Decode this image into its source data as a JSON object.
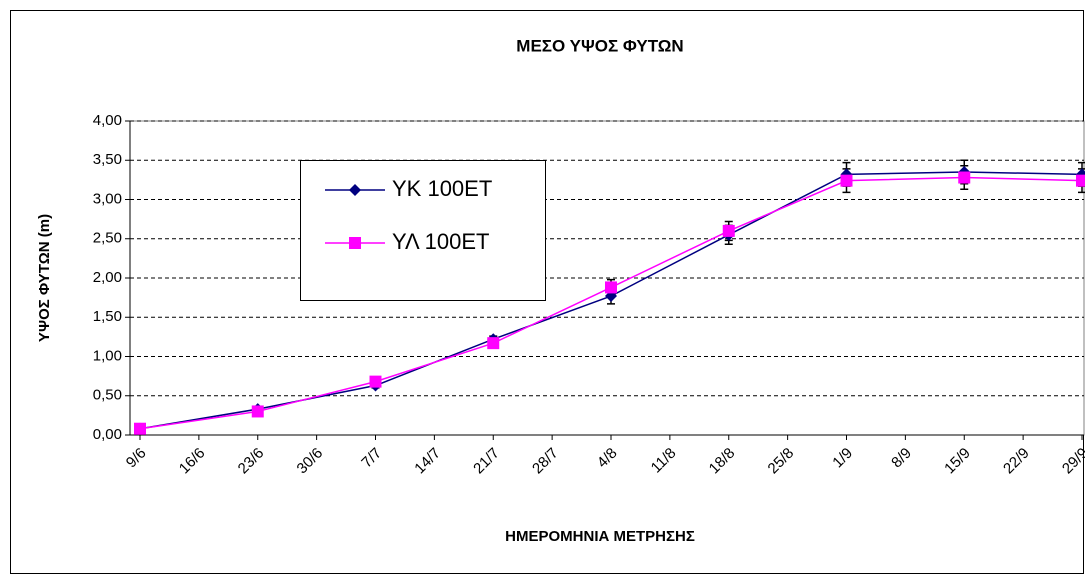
{
  "chart_data": {
    "type": "line",
    "title": "ΜΕΣΟ ΥΨΟΣ ΦΥΤΩΝ",
    "y_label": "ΥΨΟΣ ΦΥΤΩΝ (m)",
    "x_label": "ΗΜΕΡΟΜΗΝΙΑ ΜΕΤΡΗΣΗΣ",
    "categories": [
      "9/6",
      "16/6",
      "23/6",
      "30/6",
      "7/7",
      "14/7",
      "21/7",
      "28/7",
      "4/8",
      "11/8",
      "18/8",
      "25/8",
      "1/9",
      "8/9",
      "15/9",
      "22/9",
      "29/9"
    ],
    "x": [
      "9/6",
      "23/6",
      "7/7",
      "21/7",
      "4/8",
      "18/8",
      "1/9",
      "15/9",
      "29/9"
    ],
    "series": [
      {
        "name": "ΥΚ 100ΕΤ",
        "color": "#000080",
        "marker": "diamond",
        "values": [
          0.08,
          0.33,
          0.63,
          1.22,
          1.77,
          2.55,
          3.32,
          3.35,
          3.32
        ],
        "errors": [
          0.02,
          0.03,
          0.03,
          0.04,
          0.1,
          0.12,
          0.15,
          0.15,
          0.15
        ]
      },
      {
        "name": "ΥΛ 100ΕΤ",
        "color": "#ff00ff",
        "marker": "square",
        "values": [
          0.08,
          0.3,
          0.68,
          1.17,
          1.88,
          2.6,
          3.24,
          3.28,
          3.24
        ],
        "errors": [
          0.02,
          0.03,
          0.03,
          0.04,
          0.1,
          0.12,
          0.15,
          0.15,
          0.15
        ]
      }
    ],
    "ylim": [
      0,
      4
    ],
    "yticks": [
      {
        "value": 0,
        "label": "0,00"
      },
      {
        "value": 0.5,
        "label": "0,50"
      },
      {
        "value": 1,
        "label": "1,00"
      },
      {
        "value": 1.5,
        "label": "1,50"
      },
      {
        "value": 2,
        "label": "2,00"
      },
      {
        "value": 2.5,
        "label": "2,50"
      },
      {
        "value": 3,
        "label": "3,00"
      },
      {
        "value": 3.5,
        "label": "3,50"
      },
      {
        "value": 4,
        "label": "4,00"
      }
    ],
    "grid": true,
    "legend": "upper-left"
  }
}
